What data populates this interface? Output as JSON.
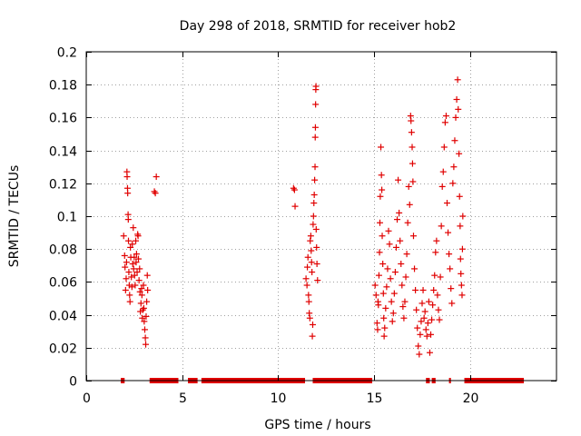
{
  "chart_data": {
    "type": "scatter",
    "title": "Day 298 of 2018, SRMTID for receiver hob2",
    "xlabel": "GPS time / hours",
    "ylabel": "SRMTID / TECUs",
    "xlim": [
      0,
      24.5
    ],
    "ylim": [
      0,
      0.2
    ],
    "xticks": [
      0,
      5,
      10,
      15,
      20
    ],
    "yticks": [
      0,
      0.02,
      0.04,
      0.06,
      0.08,
      0.1,
      0.12,
      0.14,
      0.16,
      0.18,
      0.2
    ],
    "ytick_labels": [
      "0",
      "0.02",
      "0.04",
      "0.06",
      "0.08",
      "0.1",
      "0.12",
      "0.14",
      "0.16",
      "0.18",
      "0.2"
    ],
    "grid": true,
    "marker": "+",
    "color": "#e00000",
    "series": [
      {
        "name": "SRMTID",
        "points": [
          [
            1.95,
            0.088
          ],
          [
            2.0,
            0.076
          ],
          [
            2.02,
            0.069
          ],
          [
            2.05,
            0.055
          ],
          [
            2.08,
            0.062
          ],
          [
            2.1,
            0.072
          ],
          [
            2.12,
            0.127
          ],
          [
            2.13,
            0.124
          ],
          [
            2.15,
            0.117
          ],
          [
            2.16,
            0.114
          ],
          [
            2.18,
            0.101
          ],
          [
            2.19,
            0.098
          ],
          [
            2.2,
            0.085
          ],
          [
            2.22,
            0.066
          ],
          [
            2.24,
            0.058
          ],
          [
            2.26,
            0.052
          ],
          [
            2.28,
            0.048
          ],
          [
            2.3,
            0.081
          ],
          [
            2.32,
            0.075
          ],
          [
            2.35,
            0.063
          ],
          [
            2.38,
            0.057
          ],
          [
            2.4,
            0.083
          ],
          [
            2.42,
            0.071
          ],
          [
            2.45,
            0.093
          ],
          [
            2.47,
            0.068
          ],
          [
            2.5,
            0.075
          ],
          [
            2.52,
            0.064
          ],
          [
            2.55,
            0.058
          ],
          [
            2.58,
            0.085
          ],
          [
            2.6,
            0.072
          ],
          [
            2.62,
            0.077
          ],
          [
            2.65,
            0.066
          ],
          [
            2.68,
            0.089
          ],
          [
            2.7,
            0.088
          ],
          [
            2.72,
            0.074
          ],
          [
            2.75,
            0.061
          ],
          [
            2.78,
            0.068
          ],
          [
            2.8,
            0.054
          ],
          [
            2.82,
            0.042
          ],
          [
            2.85,
            0.047
          ],
          [
            2.88,
            0.056
          ],
          [
            2.9,
            0.052
          ],
          [
            2.92,
            0.038
          ],
          [
            2.95,
            0.043
          ],
          [
            2.98,
            0.058
          ],
          [
            3.0,
            0.044
          ],
          [
            3.02,
            0.036
          ],
          [
            3.05,
            0.031
          ],
          [
            3.08,
            0.026
          ],
          [
            3.1,
            0.022
          ],
          [
            3.12,
            0.039
          ],
          [
            3.15,
            0.048
          ],
          [
            3.18,
            0.064
          ],
          [
            3.2,
            0.055
          ],
          [
            3.55,
            0.115
          ],
          [
            3.6,
            0.114
          ],
          [
            3.65,
            0.124
          ],
          [
            10.8,
            0.117
          ],
          [
            10.85,
            0.116
          ],
          [
            10.88,
            0.106
          ],
          [
            11.45,
            0.062
          ],
          [
            11.5,
            0.058
          ],
          [
            11.52,
            0.069
          ],
          [
            11.55,
            0.075
          ],
          [
            11.58,
            0.052
          ],
          [
            11.6,
            0.048
          ],
          [
            11.62,
            0.041
          ],
          [
            11.65,
            0.038
          ],
          [
            11.67,
            0.085
          ],
          [
            11.7,
            0.088
          ],
          [
            11.72,
            0.079
          ],
          [
            11.74,
            0.072
          ],
          [
            11.76,
            0.066
          ],
          [
            11.78,
            0.027
          ],
          [
            11.8,
            0.034
          ],
          [
            11.82,
            0.095
          ],
          [
            11.84,
            0.1
          ],
          [
            11.86,
            0.108
          ],
          [
            11.88,
            0.113
          ],
          [
            11.9,
            0.122
          ],
          [
            11.92,
            0.13
          ],
          [
            11.93,
            0.148
          ],
          [
            11.94,
            0.154
          ],
          [
            11.95,
            0.168
          ],
          [
            11.96,
            0.177
          ],
          [
            11.97,
            0.179
          ],
          [
            11.98,
            0.092
          ],
          [
            12.0,
            0.081
          ],
          [
            12.02,
            0.071
          ],
          [
            12.05,
            0.061
          ],
          [
            15.05,
            0.058
          ],
          [
            15.1,
            0.052
          ],
          [
            15.15,
            0.035
          ],
          [
            15.18,
            0.031
          ],
          [
            15.2,
            0.048
          ],
          [
            15.22,
            0.046
          ],
          [
            15.25,
            0.064
          ],
          [
            15.28,
            0.078
          ],
          [
            15.3,
            0.096
          ],
          [
            15.32,
            0.112
          ],
          [
            15.35,
            0.142
          ],
          [
            15.38,
            0.125
          ],
          [
            15.4,
            0.116
          ],
          [
            15.42,
            0.088
          ],
          [
            15.45,
            0.071
          ],
          [
            15.48,
            0.053
          ],
          [
            15.5,
            0.038
          ],
          [
            15.52,
            0.027
          ],
          [
            15.55,
            0.032
          ],
          [
            15.6,
            0.044
          ],
          [
            15.65,
            0.057
          ],
          [
            15.7,
            0.068
          ],
          [
            15.75,
            0.091
          ],
          [
            15.8,
            0.083
          ],
          [
            15.85,
            0.062
          ],
          [
            15.9,
            0.048
          ],
          [
            15.95,
            0.036
          ],
          [
            16.0,
            0.041
          ],
          [
            16.05,
            0.053
          ],
          [
            16.1,
            0.066
          ],
          [
            16.15,
            0.081
          ],
          [
            16.2,
            0.098
          ],
          [
            16.25,
            0.122
          ],
          [
            16.3,
            0.102
          ],
          [
            16.35,
            0.085
          ],
          [
            16.4,
            0.071
          ],
          [
            16.45,
            0.058
          ],
          [
            16.5,
            0.045
          ],
          [
            16.55,
            0.038
          ],
          [
            16.6,
            0.048
          ],
          [
            16.65,
            0.063
          ],
          [
            16.7,
            0.077
          ],
          [
            16.75,
            0.096
          ],
          [
            16.8,
            0.118
          ],
          [
            16.85,
            0.107
          ],
          [
            16.9,
            0.161
          ],
          [
            16.92,
            0.158
          ],
          [
            16.95,
            0.151
          ],
          [
            16.98,
            0.142
          ],
          [
            17.0,
            0.132
          ],
          [
            17.02,
            0.121
          ],
          [
            17.05,
            0.088
          ],
          [
            17.1,
            0.068
          ],
          [
            17.15,
            0.055
          ],
          [
            17.2,
            0.043
          ],
          [
            17.25,
            0.032
          ],
          [
            17.3,
            0.021
          ],
          [
            17.35,
            0.016
          ],
          [
            17.4,
            0.028
          ],
          [
            17.45,
            0.036
          ],
          [
            17.5,
            0.047
          ],
          [
            17.55,
            0.055
          ],
          [
            17.6,
            0.038
          ],
          [
            17.65,
            0.042
          ],
          [
            17.7,
            0.031
          ],
          [
            17.75,
            0.027
          ],
          [
            17.8,
            0.035
          ],
          [
            17.85,
            0.048
          ],
          [
            17.9,
            0.017
          ],
          [
            17.95,
            0.028
          ],
          [
            18.0,
            0.037
          ],
          [
            18.05,
            0.046
          ],
          [
            18.1,
            0.055
          ],
          [
            18.15,
            0.064
          ],
          [
            18.2,
            0.078
          ],
          [
            18.25,
            0.085
          ],
          [
            18.3,
            0.052
          ],
          [
            18.35,
            0.043
          ],
          [
            18.4,
            0.037
          ],
          [
            18.45,
            0.063
          ],
          [
            18.5,
            0.094
          ],
          [
            18.55,
            0.118
          ],
          [
            18.6,
            0.127
          ],
          [
            18.65,
            0.142
          ],
          [
            18.7,
            0.157
          ],
          [
            18.75,
            0.161
          ],
          [
            18.8,
            0.108
          ],
          [
            18.85,
            0.09
          ],
          [
            18.9,
            0.077
          ],
          [
            18.95,
            0.068
          ],
          [
            19.0,
            0.056
          ],
          [
            19.05,
            0.047
          ],
          [
            19.1,
            0.12
          ],
          [
            19.15,
            0.13
          ],
          [
            19.2,
            0.146
          ],
          [
            19.25,
            0.16
          ],
          [
            19.3,
            0.171
          ],
          [
            19.35,
            0.183
          ],
          [
            19.38,
            0.165
          ],
          [
            19.42,
            0.138
          ],
          [
            19.45,
            0.112
          ],
          [
            19.48,
            0.094
          ],
          [
            19.5,
            0.074
          ],
          [
            19.52,
            0.065
          ],
          [
            19.55,
            0.058
          ],
          [
            19.58,
            0.052
          ],
          [
            19.6,
            0.08
          ],
          [
            19.62,
            0.1
          ]
        ]
      }
    ],
    "no_data_bands": [
      [
        1.8,
        2.0
      ],
      [
        3.3,
        4.8
      ],
      [
        5.3,
        5.8
      ],
      [
        6.0,
        11.4
      ],
      [
        11.8,
        14.9
      ],
      [
        17.7,
        17.9
      ],
      [
        18.0,
        18.2
      ],
      [
        18.9,
        19.0
      ],
      [
        19.7,
        22.8
      ]
    ]
  }
}
